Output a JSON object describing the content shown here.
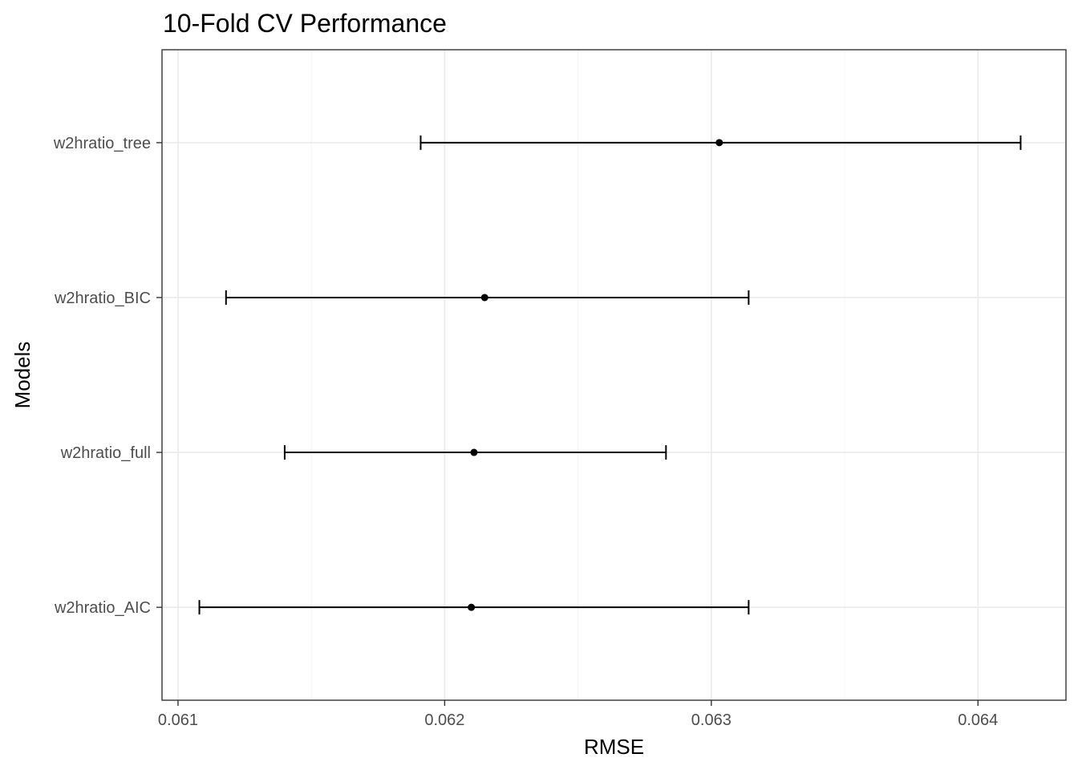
{
  "chart_data": {
    "type": "scatter",
    "title": "10-Fold CV Performance",
    "xlabel": "RMSE",
    "ylabel": "Models",
    "xlim": [
      0.06094,
      0.06433
    ],
    "x_ticks": [
      0.061,
      0.062,
      0.063,
      0.064
    ],
    "x_tick_labels": [
      "0.061",
      "0.062",
      "0.063",
      "0.064"
    ],
    "x_minor_ticks": [
      0.0615,
      0.0625,
      0.0635
    ],
    "grid": true,
    "legend": "none",
    "categories": [
      "w2hratio_AIC",
      "w2hratio_full",
      "w2hratio_BIC",
      "w2hratio_tree"
    ],
    "series": [
      {
        "points": [
          {
            "model": "w2hratio_AIC",
            "rmse": 0.0621,
            "lower": 0.06108,
            "upper": 0.06314
          },
          {
            "model": "w2hratio_full",
            "rmse": 0.06211,
            "lower": 0.0614,
            "upper": 0.06283
          },
          {
            "model": "w2hratio_BIC",
            "rmse": 0.06215,
            "lower": 0.06118,
            "upper": 0.06314
          },
          {
            "model": "w2hratio_tree",
            "rmse": 0.06303,
            "lower": 0.06191,
            "upper": 0.06416
          }
        ]
      }
    ],
    "colors": {
      "marks": "#000000",
      "grid": "#ebebeb",
      "tick_text": "#4d4d4d",
      "border": "#333333"
    }
  }
}
